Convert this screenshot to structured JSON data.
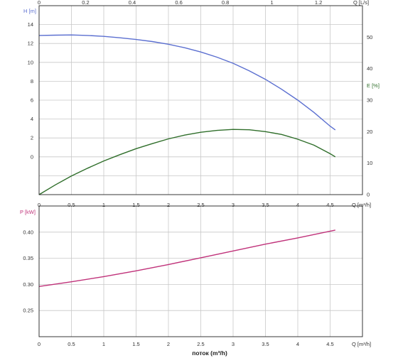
{
  "chart_data": [
    {
      "type": "line",
      "name": "top-panel",
      "x": {
        "label": "Q [m³/h]",
        "range": [
          0,
          5
        ],
        "ticks": [
          "0",
          "0.5",
          "1",
          "1.5",
          "2",
          "2.5",
          "3",
          "3.5",
          "4",
          "4.5"
        ],
        "tick_values": [
          0,
          0.5,
          1,
          1.5,
          2,
          2.5,
          3,
          3.5,
          4,
          4.5
        ]
      },
      "x_top": {
        "label": "Q [L/s]",
        "ticks": [
          "0",
          "0.2",
          "0.4",
          "0.6",
          "0.8",
          "1",
          "1.2"
        ],
        "tick_values": [
          0,
          0.2,
          0.4,
          0.6,
          0.8,
          1.0,
          1.2
        ]
      },
      "y_left": {
        "label": "H [m]",
        "range": [
          -4,
          16
        ],
        "ticks": [
          "14",
          "12",
          "10",
          "8",
          "6",
          "4",
          "2",
          "0"
        ],
        "tick_values": [
          14,
          12,
          10,
          8,
          6,
          4,
          2,
          0
        ],
        "extra_gridlines": [
          -2
        ]
      },
      "y_right": {
        "label": "E [%]",
        "range": [
          0,
          60
        ],
        "ticks": [
          "50",
          "40",
          "30",
          "20",
          "10",
          "0"
        ],
        "tick_values": [
          50,
          40,
          30,
          20,
          10,
          0
        ]
      },
      "grid": true,
      "series": [
        {
          "id": "head",
          "axis": "left",
          "color": "#5b6fd0",
          "x": [
            0,
            0.25,
            0.5,
            0.75,
            1.0,
            1.25,
            1.5,
            1.75,
            2.0,
            2.25,
            2.5,
            2.75,
            3.0,
            3.25,
            3.5,
            3.75,
            4.0,
            4.25,
            4.5,
            4.58
          ],
          "y": [
            12.85,
            12.88,
            12.9,
            12.85,
            12.75,
            12.6,
            12.42,
            12.2,
            11.92,
            11.55,
            11.1,
            10.55,
            9.9,
            9.1,
            8.2,
            7.15,
            6.0,
            4.7,
            3.25,
            2.85
          ]
        },
        {
          "id": "efficiency",
          "axis": "right",
          "color": "#2f6e2a",
          "x": [
            0,
            0.25,
            0.5,
            0.75,
            1.0,
            1.25,
            1.5,
            1.75,
            2.0,
            2.25,
            2.5,
            2.75,
            3.0,
            3.25,
            3.5,
            3.75,
            4.0,
            4.25,
            4.5,
            4.58
          ],
          "y": [
            0,
            3.1,
            5.9,
            8.4,
            10.7,
            12.7,
            14.6,
            16.2,
            17.7,
            18.9,
            19.8,
            20.4,
            20.7,
            20.6,
            20.0,
            19.1,
            17.6,
            15.7,
            13.0,
            12.0
          ]
        }
      ]
    },
    {
      "type": "line",
      "name": "bottom-panel",
      "x": {
        "label": "Q [m³/h]",
        "range": [
          0,
          5
        ],
        "ticks": [
          "0",
          "0.5",
          "1",
          "1.5",
          "2",
          "2.5",
          "3",
          "3.5",
          "4",
          "4.5"
        ],
        "tick_values": [
          0,
          0.5,
          1,
          1.5,
          2,
          2.5,
          3,
          3.5,
          4,
          4.5
        ]
      },
      "y_left": {
        "label": "P [kW]",
        "range": [
          0.2,
          0.45
        ],
        "ticks": [
          "0.40",
          "0.35",
          "0.30",
          "0.25"
        ],
        "tick_values": [
          0.4,
          0.35,
          0.3,
          0.25
        ]
      },
      "grid": true,
      "series": [
        {
          "id": "power",
          "axis": "left",
          "color": "#c0327a",
          "x": [
            0,
            0.5,
            1.0,
            1.5,
            2.0,
            2.5,
            3.0,
            3.5,
            4.0,
            4.58
          ],
          "y": [
            0.296,
            0.305,
            0.315,
            0.326,
            0.338,
            0.351,
            0.364,
            0.377,
            0.389,
            0.404
          ]
        }
      ]
    }
  ],
  "xaxis_title": "поток (m³/h)",
  "colors": {
    "head_axis": "#5b6fd0",
    "efficiency_axis": "#2f6e2a",
    "power_axis": "#c0327a",
    "axis_text": "#333333"
  }
}
